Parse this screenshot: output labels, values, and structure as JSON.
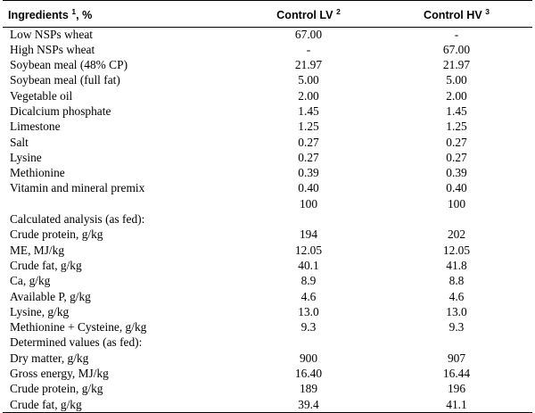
{
  "header": {
    "col0": "Ingredients",
    "col0_sup": "1",
    "col0_suffix": ", %",
    "col1": "Control LV",
    "col1_sup": "2",
    "col2": "Control HV",
    "col2_sup": "3"
  },
  "rows": [
    {
      "label": "Low NSPs wheat",
      "lv": "67.00",
      "hv": "-"
    },
    {
      "label": "High NSPs wheat",
      "lv": "-",
      "hv": "67.00"
    },
    {
      "label": "Soybean meal (48% CP)",
      "lv": "21.97",
      "hv": "21.97"
    },
    {
      "label": "Soybean meal (full fat)",
      "lv": "5.00",
      "hv": "5.00"
    },
    {
      "label": "Vegetable oil",
      "lv": "2.00",
      "hv": "2.00"
    },
    {
      "label": "Dicalcium phosphate",
      "lv": "1.45",
      "hv": "1.45"
    },
    {
      "label": "Limestone",
      "lv": "1.25",
      "hv": "1.25"
    },
    {
      "label": "Salt",
      "lv": "0.27",
      "hv": "0.27"
    },
    {
      "label": "Lysine",
      "lv": "0.27",
      "hv": "0.27"
    },
    {
      "label": "Methionine",
      "lv": "0.39",
      "hv": "0.39"
    },
    {
      "label": "Vitamin and mineral premix",
      "lv": "0.40",
      "hv": "0.40"
    },
    {
      "label": "",
      "lv": "100",
      "hv": "100"
    },
    {
      "label": "Calculated analysis (as fed):",
      "lv": "",
      "hv": ""
    },
    {
      "label": "Crude protein, g/kg",
      "lv": "194",
      "hv": "202"
    },
    {
      "label": "ME, MJ/kg",
      "lv": "12.05",
      "hv": "12.05"
    },
    {
      "label": "Crude fat, g/kg",
      "lv": "40.1",
      "hv": "41.8"
    },
    {
      "label": "Ca, g/kg",
      "lv": "8.9",
      "hv": "8.8"
    },
    {
      "label": "Available P, g/kg",
      "lv": "4.6",
      "hv": "4.6"
    },
    {
      "label": "Lysine, g/kg",
      "lv": "13.0",
      "hv": "13.0"
    },
    {
      "label": "Methionine + Cysteine, g/kg",
      "lv": "9.3",
      "hv": "9.3"
    },
    {
      "label": "Determined values (as fed):",
      "lv": "",
      "hv": ""
    },
    {
      "label": "Dry matter, g/kg",
      "lv": "900",
      "hv": "907"
    },
    {
      "label": "Gross energy, MJ/kg",
      "lv": "16.40",
      "hv": "16.44"
    },
    {
      "label": "Crude protein, g/kg",
      "lv": "189",
      "hv": "196"
    },
    {
      "label": "Crude fat, g/kg",
      "lv": "39.4",
      "hv": "41.1"
    }
  ]
}
